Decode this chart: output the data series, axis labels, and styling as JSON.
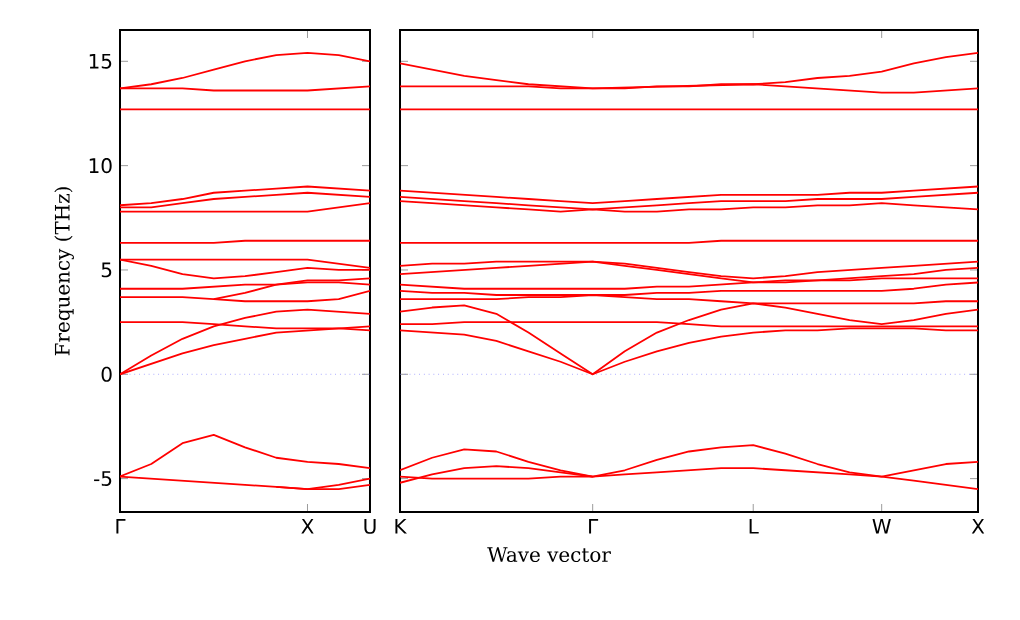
{
  "chart_data": [
    {
      "type": "line",
      "ylabel": "Frequency (THz)",
      "categories": [
        "Γ",
        null,
        null,
        null,
        null,
        null,
        "X",
        null,
        "U"
      ],
      "ylim": [
        -6.6,
        16.5
      ],
      "yticks": [
        -5,
        0,
        5,
        10,
        15
      ],
      "marker": "none",
      "line_style": "solid",
      "grid": false,
      "ref_lines": [
        {
          "axis": "y",
          "value": 0,
          "color": "#8080ff",
          "line_style": "dotted"
        }
      ],
      "series": [
        {
          "color": "#ff0000",
          "values": [
            13.7,
            13.9,
            14.2,
            14.6,
            15.0,
            15.3,
            15.4,
            15.3,
            15.0
          ]
        },
        {
          "color": "#ff0000",
          "values": [
            13.7,
            13.7,
            13.7,
            13.6,
            13.6,
            13.6,
            13.6,
            13.7,
            13.8
          ]
        },
        {
          "color": "#ff0000",
          "values": [
            12.7,
            12.7,
            12.7,
            12.7,
            12.7,
            12.7,
            12.7,
            12.7,
            12.7
          ]
        },
        {
          "color": "#ff0000",
          "values": [
            8.1,
            8.2,
            8.4,
            8.7,
            8.8,
            8.9,
            9.0,
            8.9,
            8.8
          ]
        },
        {
          "color": "#ff0000",
          "values": [
            8.0,
            8.0,
            8.2,
            8.4,
            8.5,
            8.6,
            8.7,
            8.6,
            8.5
          ]
        },
        {
          "color": "#ff0000",
          "values": [
            7.8,
            7.8,
            7.8,
            7.8,
            7.8,
            7.8,
            7.8,
            8.0,
            8.2
          ]
        },
        {
          "color": "#ff0000",
          "values": [
            6.3,
            6.3,
            6.3,
            6.3,
            6.4,
            6.4,
            6.4,
            6.4,
            6.4
          ]
        },
        {
          "color": "#ff0000",
          "values": [
            5.5,
            5.5,
            5.5,
            5.5,
            5.5,
            5.5,
            5.5,
            5.3,
            5.1
          ]
        },
        {
          "color": "#ff0000",
          "values": [
            5.5,
            5.2,
            4.8,
            4.6,
            4.7,
            4.9,
            5.1,
            5.0,
            5.0
          ]
        },
        {
          "color": "#ff0000",
          "values": [
            4.1,
            4.1,
            4.1,
            4.2,
            4.3,
            4.3,
            4.4,
            4.4,
            4.3
          ]
        },
        {
          "color": "#ff0000",
          "values": [
            null,
            null,
            null,
            3.6,
            3.9,
            4.3,
            4.5,
            4.5,
            4.6
          ]
        },
        {
          "color": "#ff0000",
          "values": [
            3.7,
            3.7,
            3.7,
            3.6,
            3.5,
            3.5,
            3.5,
            3.6,
            4.0
          ]
        },
        {
          "color": "#ff0000",
          "values": [
            2.5,
            2.5,
            2.5,
            2.4,
            2.3,
            2.2,
            2.2,
            2.2,
            2.1
          ]
        },
        {
          "color": "#ff0000",
          "values": [
            0,
            0.9,
            1.7,
            2.3,
            2.7,
            3.0,
            3.1,
            3.0,
            2.9
          ]
        },
        {
          "color": "#ff0000",
          "values": [
            0,
            0.5,
            1.0,
            1.4,
            1.7,
            2.0,
            2.1,
            2.2,
            2.3
          ]
        },
        {
          "color": "#ff0000",
          "values": [
            -4.9,
            -4.3,
            -3.3,
            -2.9,
            -3.5,
            -4.0,
            -4.2,
            -4.3,
            -4.5
          ]
        },
        {
          "color": "#ff0000",
          "values": [
            null,
            null,
            null,
            null,
            null,
            -5.4,
            -5.5,
            -5.3,
            -5.0
          ]
        },
        {
          "color": "#ff0000",
          "values": [
            -4.9,
            -5.0,
            -5.1,
            -5.2,
            -5.3,
            -5.4,
            -5.5,
            -5.5,
            -5.3
          ]
        }
      ]
    },
    {
      "type": "line",
      "xlabel": "Wave vector",
      "categories": [
        "K",
        null,
        null,
        null,
        null,
        null,
        "Γ",
        null,
        null,
        null,
        null,
        "L",
        null,
        null,
        null,
        "W",
        null,
        null,
        "X"
      ],
      "ylim": [
        -6.6,
        16.5
      ],
      "yticks": [
        -5,
        0,
        5,
        10,
        15
      ],
      "tick_labels": "x",
      "marker": "none",
      "line_style": "solid",
      "grid": false,
      "ref_lines": [
        {
          "axis": "y",
          "value": 0,
          "color": "#8080ff",
          "line_style": "dotted"
        }
      ],
      "series": [
        {
          "color": "#ff0000",
          "values": [
            14.9,
            14.6,
            14.3,
            14.1,
            13.9,
            13.8,
            13.7,
            13.7,
            13.8,
            13.8,
            13.9,
            13.9,
            14.0,
            14.2,
            14.3,
            14.5,
            14.9,
            15.2,
            15.4
          ]
        },
        {
          "color": "#ff0000",
          "values": [
            13.8,
            13.8,
            13.8,
            13.8,
            13.8,
            13.7,
            13.7,
            null,
            null,
            null,
            null,
            13.9,
            13.8,
            13.7,
            13.6,
            13.5,
            13.5,
            13.6,
            13.7
          ]
        },
        {
          "color": "#ff0000",
          "values": [
            12.7,
            12.7,
            12.7,
            12.7,
            12.7,
            12.7,
            12.7,
            12.7,
            12.7,
            12.7,
            12.7,
            12.7,
            12.7,
            12.7,
            12.7,
            12.7,
            12.7,
            12.7,
            12.7
          ]
        },
        {
          "color": "#ff0000",
          "values": [
            8.8,
            8.7,
            8.6,
            8.5,
            8.4,
            8.3,
            8.2,
            8.3,
            8.4,
            8.5,
            8.6,
            8.6,
            8.6,
            8.6,
            8.7,
            8.7,
            8.8,
            8.9,
            9.0
          ]
        },
        {
          "color": "#ff0000",
          "values": [
            8.5,
            8.4,
            8.3,
            8.2,
            8.1,
            8.0,
            7.9,
            8.0,
            8.1,
            8.2,
            8.3,
            8.3,
            8.3,
            8.4,
            8.4,
            8.4,
            8.5,
            8.6,
            8.7
          ]
        },
        {
          "color": "#ff0000",
          "values": [
            8.3,
            8.2,
            8.1,
            8.0,
            7.9,
            7.8,
            7.9,
            7.8,
            7.8,
            7.9,
            7.9,
            8.0,
            8.0,
            8.1,
            8.1,
            8.2,
            8.1,
            8.0,
            7.9
          ]
        },
        {
          "color": "#ff0000",
          "values": [
            6.3,
            6.3,
            6.3,
            6.3,
            6.3,
            6.3,
            6.3,
            6.3,
            6.3,
            6.3,
            6.4,
            6.4,
            6.4,
            6.4,
            6.4,
            6.4,
            6.4,
            6.4,
            6.4
          ]
        },
        {
          "color": "#ff0000",
          "values": [
            5.2,
            5.3,
            5.3,
            5.4,
            5.4,
            5.4,
            5.4,
            5.3,
            5.1,
            4.9,
            4.7,
            4.6,
            4.7,
            4.9,
            5.0,
            5.1,
            5.2,
            5.3,
            5.4
          ]
        },
        {
          "color": "#ff0000",
          "values": [
            4.8,
            4.9,
            5.0,
            5.1,
            5.2,
            5.3,
            5.4,
            5.2,
            5.0,
            4.8,
            4.6,
            4.4,
            4.5,
            4.5,
            4.6,
            4.7,
            4.8,
            5.0,
            5.1
          ]
        },
        {
          "color": "#ff0000",
          "values": [
            4.3,
            4.2,
            4.1,
            4.1,
            4.1,
            4.1,
            4.1,
            4.1,
            4.2,
            4.2,
            4.3,
            4.4,
            4.4,
            4.5,
            4.5,
            4.6,
            4.6,
            4.6,
            4.6
          ]
        },
        {
          "color": "#ff0000",
          "values": [
            4.0,
            3.9,
            3.9,
            3.8,
            3.8,
            3.8,
            3.8,
            3.8,
            3.9,
            3.9,
            4.0,
            4.0,
            4.0,
            4.0,
            4.0,
            4.0,
            4.1,
            4.3,
            4.4
          ]
        },
        {
          "color": "#ff0000",
          "values": [
            3.6,
            3.6,
            3.6,
            3.6,
            3.7,
            3.7,
            3.8,
            3.7,
            3.6,
            3.6,
            3.5,
            3.4,
            3.4,
            3.4,
            3.4,
            3.4,
            3.4,
            3.5,
            3.5
          ]
        },
        {
          "color": "#ff0000",
          "values": [
            2.4,
            2.4,
            2.5,
            2.5,
            2.5,
            2.5,
            2.5,
            2.5,
            2.5,
            2.4,
            2.3,
            2.3,
            2.3,
            2.3,
            2.3,
            2.3,
            2.3,
            2.3,
            2.3
          ]
        },
        {
          "color": "#ff0000",
          "values": [
            3.0,
            3.2,
            3.3,
            2.9,
            2.0,
            1.0,
            0,
            1.1,
            2.0,
            2.6,
            3.1,
            3.4,
            3.2,
            2.9,
            2.6,
            2.4,
            2.6,
            2.9,
            3.1
          ]
        },
        {
          "color": "#ff0000",
          "values": [
            2.1,
            2.0,
            1.9,
            1.6,
            1.1,
            0.6,
            0,
            0.6,
            1.1,
            1.5,
            1.8,
            2.0,
            2.1,
            2.1,
            2.2,
            2.2,
            2.2,
            2.1,
            2.1
          ]
        },
        {
          "color": "#ff0000",
          "values": [
            -4.6,
            -4.0,
            -3.6,
            -3.7,
            -4.2,
            -4.6,
            -4.9,
            -4.6,
            -4.1,
            -3.7,
            -3.5,
            -3.4,
            -3.8,
            -4.3,
            -4.7,
            -4.9,
            -4.6,
            -4.3,
            -4.2
          ]
        },
        {
          "color": "#ff0000",
          "values": [
            -5.2,
            -4.8,
            -4.5,
            -4.4,
            -4.5,
            -4.7,
            -4.9,
            -4.8,
            -4.7,
            -4.6,
            -4.5,
            -4.5,
            -4.6,
            -4.7,
            -4.8,
            -4.9,
            -5.1,
            -5.3,
            -5.5
          ]
        },
        {
          "color": "#ff0000",
          "values": [
            -4.9,
            -5.0,
            -5.0,
            -5.0,
            -5.0,
            -4.9,
            -4.9,
            null,
            null,
            null,
            null,
            null,
            null,
            null,
            null,
            null,
            null,
            null,
            null
          ]
        }
      ]
    }
  ]
}
